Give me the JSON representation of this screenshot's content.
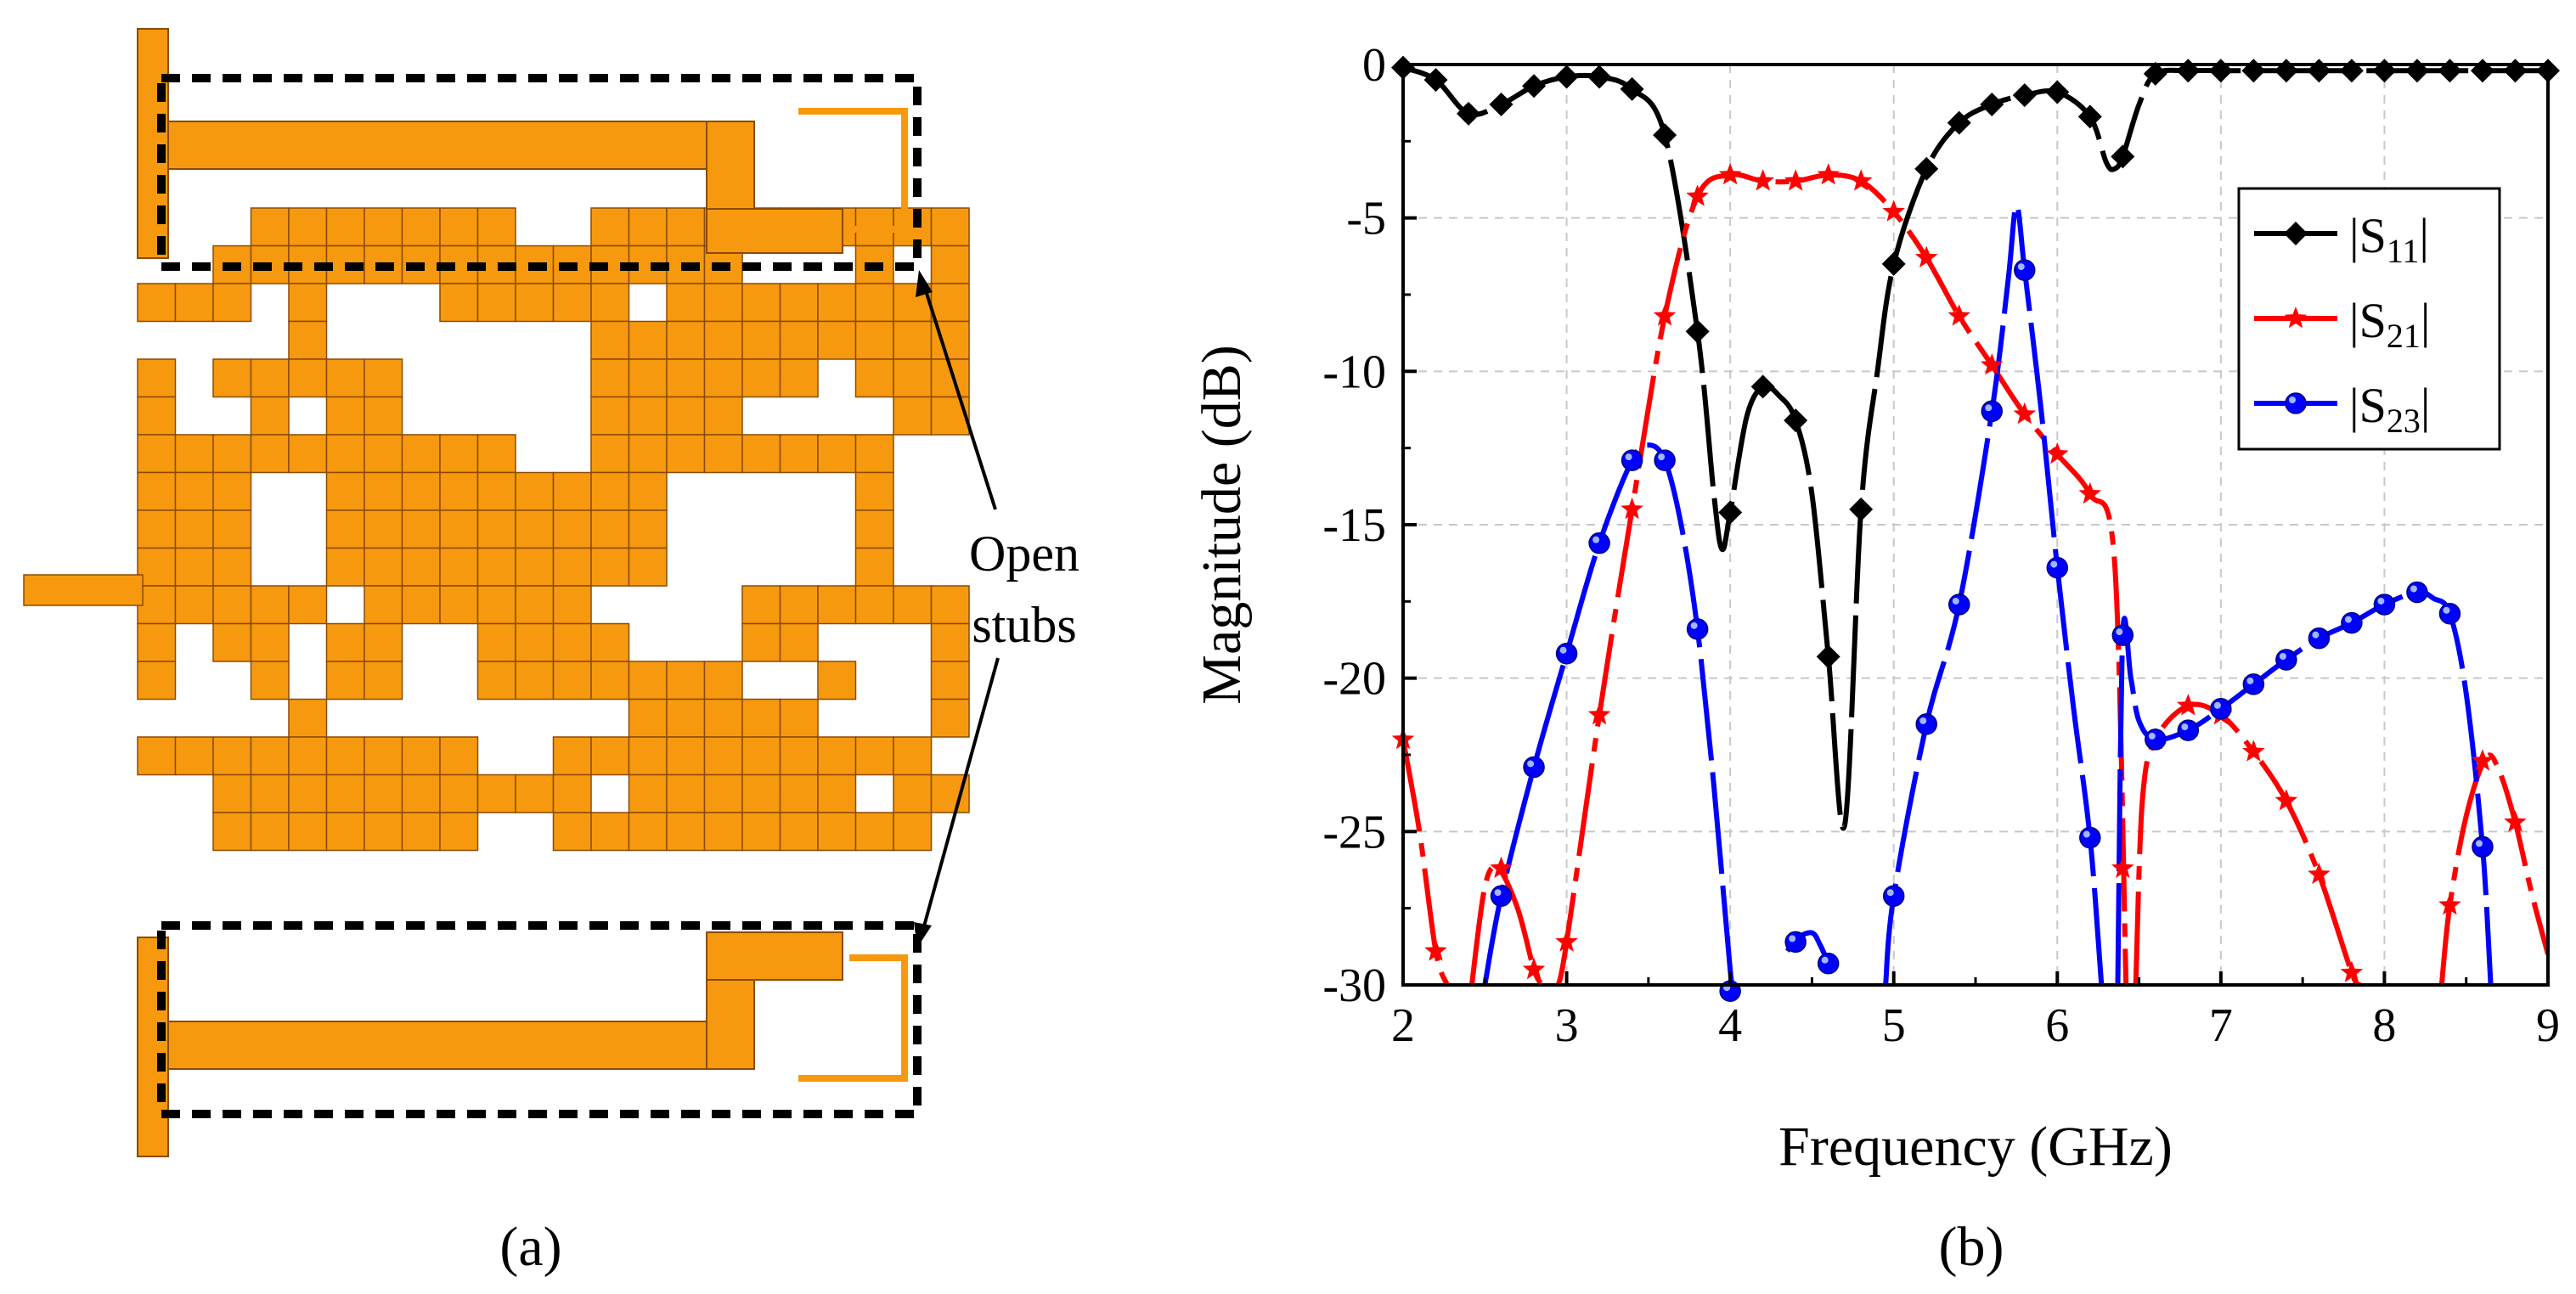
{
  "panel_a": {
    "caption": "(a)",
    "annotation_line1": "Open",
    "annotation_line2": "stubs",
    "colors": {
      "metal": "#F7990F",
      "metal_edge": "#8B4A00",
      "box": "#000000"
    }
  },
  "panel_b": {
    "caption": "(b)"
  },
  "chart_data": {
    "type": "line",
    "title": "",
    "xlabel": "Frequency (GHz)",
    "ylabel": "Magnitude (dB)",
    "xlim": [
      2,
      9
    ],
    "ylim": [
      -30,
      0
    ],
    "xticks": [
      "2",
      "3",
      "4",
      "5",
      "6",
      "7",
      "8",
      "9"
    ],
    "yticks": [
      "0",
      "-5",
      "-10",
      "-15",
      "-20",
      "-25",
      "-30"
    ],
    "grid": true,
    "legend_position": "top-right",
    "series": [
      {
        "name": "|S11|",
        "label_main": "|S",
        "label_sub": "11",
        "label_end": "|",
        "color": "#000000",
        "marker": "diamond",
        "dash": "long-dash",
        "x": [
          2.0,
          2.2,
          2.4,
          2.6,
          2.8,
          3.0,
          3.2,
          3.4,
          3.6,
          3.8,
          3.9,
          3.95,
          4.0,
          4.1,
          4.2,
          4.3,
          4.4,
          4.5,
          4.6,
          4.7,
          4.8,
          4.9,
          5.0,
          5.2,
          5.4,
          5.6,
          5.8,
          6.0,
          6.2,
          6.3,
          6.35,
          6.4,
          6.5,
          6.6,
          6.8,
          7.0,
          7.5,
          8.0,
          8.5,
          9.0
        ],
        "y": [
          -0.1,
          -0.5,
          -1.6,
          -1.3,
          -0.7,
          -0.4,
          -0.4,
          -0.8,
          -2.3,
          -8.7,
          -14.0,
          -15.8,
          -14.6,
          -11.5,
          -10.5,
          -10.8,
          -11.6,
          -14.0,
          -19.3,
          -24.8,
          -14.5,
          -10.0,
          -6.5,
          -3.4,
          -1.9,
          -1.3,
          -1.0,
          -0.9,
          -1.7,
          -3.2,
          -3.4,
          -3.0,
          -1.3,
          -0.3,
          -0.2,
          -0.2,
          -0.2,
          -0.2,
          -0.2,
          -0.2
        ],
        "markers_x": [
          2.0,
          2.2,
          2.4,
          2.6,
          2.8,
          3.0,
          3.2,
          3.4,
          3.6,
          3.8,
          4.0,
          4.2,
          4.4,
          4.6,
          4.8,
          5.0,
          5.2,
          5.4,
          5.6,
          5.8,
          6.0,
          6.2,
          6.4,
          6.6,
          6.8,
          7.0,
          7.2,
          7.4,
          7.6,
          7.8,
          8.0,
          8.2,
          8.4,
          8.6,
          8.8,
          9.0
        ],
        "markers_y": [
          -0.1,
          -0.5,
          -1.6,
          -1.3,
          -0.7,
          -0.4,
          -0.4,
          -0.8,
          -2.3,
          -8.7,
          -14.6,
          -10.5,
          -11.6,
          -19.3,
          -14.5,
          -6.5,
          -3.4,
          -1.9,
          -1.3,
          -1.0,
          -0.9,
          -1.7,
          -3.0,
          -0.3,
          -0.2,
          -0.2,
          -0.2,
          -0.2,
          -0.2,
          -0.2,
          -0.2,
          -0.2,
          -0.2,
          -0.2,
          -0.2,
          -0.2
        ]
      },
      {
        "name": "|S21|",
        "label_main": "|S",
        "label_sub": "21",
        "label_end": "|",
        "color": "#FF0000",
        "marker": "star",
        "dash": "dash-dot",
        "segments": [
          {
            "x": [
              2.0,
              2.1,
              2.2,
              2.27
            ],
            "y": [
              -22.0,
              -25.0,
              -28.9,
              -30.0
            ]
          },
          {
            "x": [
              2.42,
              2.5,
              2.58,
              2.7,
              2.8,
              2.85
            ],
            "y": [
              -30.0,
              -26.8,
              -26.2,
              -27.5,
              -29.5,
              -30.0
            ]
          },
          {
            "x": [
              2.95,
              3.0,
              3.2,
              3.4,
              3.6,
              3.8,
              4.0,
              4.2,
              4.4,
              4.6,
              4.8,
              5.0,
              5.2,
              5.4,
              5.6,
              5.8,
              6.0,
              6.2,
              6.35,
              6.42
            ],
            "y": [
              -30.0,
              -28.6,
              -21.2,
              -14.5,
              -8.2,
              -4.3,
              -3.6,
              -3.8,
              -3.8,
              -3.6,
              -3.8,
              -4.8,
              -6.3,
              -8.2,
              -9.8,
              -11.4,
              -12.7,
              -14.0,
              -16.2,
              -30.0
            ]
          },
          {
            "x": [
              6.48,
              6.52,
              6.6,
              6.8,
              7.0,
              7.2,
              7.4,
              7.6,
              7.8,
              7.85
            ],
            "y": [
              -30.0,
              -24.0,
              -22.0,
              -20.9,
              -21.2,
              -22.4,
              -24.0,
              -26.4,
              -29.6,
              -30.0
            ]
          },
          {
            "x": [
              8.35,
              8.4,
              8.5,
              8.62,
              8.7,
              8.8,
              8.9,
              9.0
            ],
            "y": [
              -30.0,
              -27.4,
              -24.5,
              -22.6,
              -23.0,
              -24.7,
              -27.0,
              -29.0
            ]
          }
        ],
        "markers_x": [
          2.0,
          2.2,
          2.6,
          2.8,
          3.0,
          3.2,
          3.4,
          3.6,
          3.8,
          4.0,
          4.2,
          4.4,
          4.6,
          4.8,
          5.0,
          5.2,
          5.4,
          5.6,
          5.8,
          6.0,
          6.2,
          6.4,
          6.6,
          6.8,
          7.0,
          7.2,
          7.4,
          7.6,
          7.8,
          8.4,
          8.6,
          8.8
        ],
        "markers_y": [
          -22.0,
          -28.9,
          -26.2,
          -29.5,
          -28.6,
          -21.2,
          -14.5,
          -8.2,
          -4.3,
          -3.6,
          -3.8,
          -3.8,
          -3.6,
          -3.8,
          -4.8,
          -6.3,
          -8.2,
          -9.8,
          -11.4,
          -12.7,
          -14.0,
          -26.2,
          -22.0,
          -20.9,
          -21.2,
          -22.4,
          -24.0,
          -26.4,
          -29.6,
          -27.4,
          -22.7,
          -24.7
        ]
      },
      {
        "name": "|S23|",
        "label_main": "|S",
        "label_sub": "23",
        "label_end": "|",
        "color": "#0000FF",
        "marker": "circle",
        "dash": "long-dash",
        "segments": [
          {
            "x": [
              2.5,
              2.6,
              2.8,
              3.0,
              3.2,
              3.4,
              3.5,
              3.6,
              3.7,
              3.8,
              3.9,
              4.0,
              4.02
            ],
            "y": [
              -30.0,
              -27.1,
              -22.9,
              -19.2,
              -15.6,
              -12.9,
              -12.4,
              -12.9,
              -15.0,
              -18.4,
              -23.5,
              -29.5,
              -30.0
            ]
          },
          {
            "x": [
              4.35,
              4.4,
              4.5,
              4.55,
              4.6
            ],
            "y": [
              -28.9,
              -28.5,
              -28.3,
              -28.7,
              -29.3
            ]
          },
          {
            "x": [
              4.95,
              5.0,
              5.2,
              5.4,
              5.6,
              5.7,
              5.75,
              5.8,
              5.9,
              6.0,
              6.1,
              6.2,
              6.27
            ],
            "y": [
              -30.0,
              -27.1,
              -21.5,
              -17.6,
              -11.3,
              -7.0,
              -4.6,
              -6.7,
              -11.2,
              -16.4,
              -21.0,
              -25.2,
              -30.0
            ]
          },
          {
            "x": [
              6.37,
              6.4,
              6.45,
              6.5,
              6.6,
              6.8,
              7.0,
              7.2,
              7.4,
              7.6,
              7.8,
              8.0,
              8.2,
              8.3,
              8.4,
              8.5,
              8.6,
              8.65
            ],
            "y": [
              -30.0,
              -18.6,
              -20.0,
              -21.4,
              -22.0,
              -21.7,
              -21.0,
              -20.2,
              -19.4,
              -18.7,
              -18.2,
              -17.6,
              -17.2,
              -17.4,
              -17.9,
              -20.5,
              -25.5,
              -30.0
            ]
          }
        ],
        "markers_x": [
          2.6,
          2.8,
          3.0,
          3.2,
          3.4,
          3.6,
          3.8,
          4.0,
          4.4,
          4.6,
          5.0,
          5.2,
          5.4,
          5.6,
          5.8,
          6.0,
          6.2,
          6.4,
          6.6,
          6.8,
          7.0,
          7.2,
          7.4,
          7.6,
          7.8,
          8.0,
          8.2,
          8.4,
          8.6
        ],
        "markers_y": [
          -27.1,
          -22.9,
          -19.2,
          -15.6,
          -12.9,
          -12.9,
          -18.4,
          -30.2,
          -28.6,
          -29.3,
          -27.1,
          -21.5,
          -17.6,
          -11.3,
          -6.7,
          -16.4,
          -25.2,
          -18.6,
          -22.0,
          -21.7,
          -21.0,
          -20.2,
          -19.4,
          -18.7,
          -18.2,
          -17.6,
          -17.2,
          -17.9,
          -25.5
        ]
      }
    ]
  }
}
